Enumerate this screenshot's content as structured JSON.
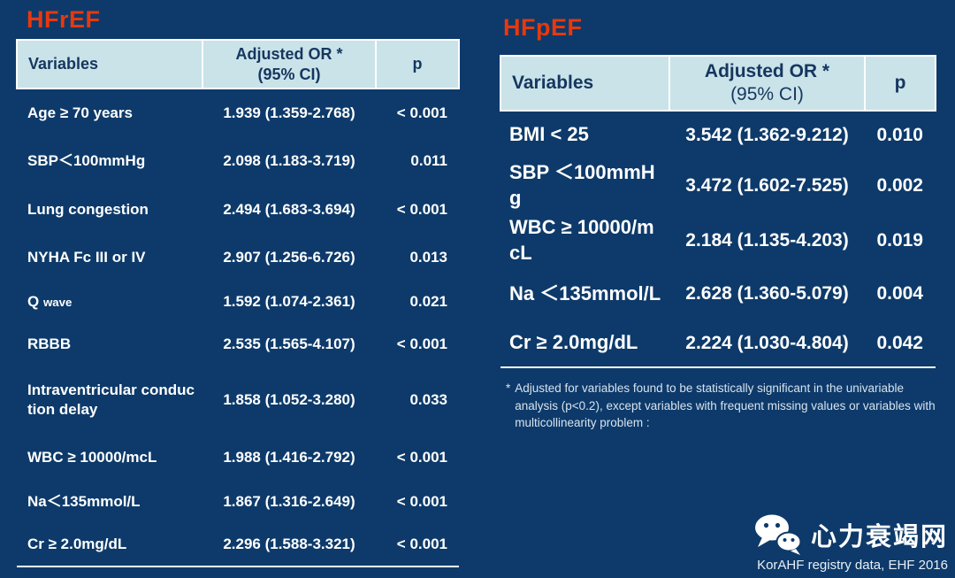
{
  "slide": {
    "background_color": "#0d3a6a",
    "accent_red": "#e8380d",
    "table_header_bg": "#c9e3e9",
    "table_header_text": "#16365f",
    "body_text_color": "#ffffff"
  },
  "left_table": {
    "title": "HFrEF",
    "columns": {
      "variable": "Variables",
      "or_line1": "Adjusted OR *",
      "or_line2": "(95% CI)",
      "p": "p"
    },
    "rows": [
      {
        "variable": "Age ≥ 70 years",
        "or": "1.939 (1.359-2.768)",
        "p": "< 0.001"
      },
      {
        "variable": "SBP＜100mmHg",
        "or": "2.098 (1.183-3.719)",
        "p": "0.011"
      },
      {
        "variable": "Lung congestion",
        "or": "2.494 (1.683-3.694)",
        "p": "< 0.001"
      },
      {
        "variable": "NYHA Fc III or IV",
        "or": "2.907 (1.256-6.726)",
        "p": "0.013"
      },
      {
        "variable": "Q",
        "variable_small": "wave",
        "or": "1.592 (1.074-2.361)",
        "p": "0.021"
      },
      {
        "variable": "RBBB",
        "or": "2.535 (1.565-4.107)",
        "p": "< 0.001"
      },
      {
        "variable": "Intraventricular conduction delay",
        "or": "1.858 (1.052-3.280)",
        "p": "0.033"
      },
      {
        "variable": "WBC ≥ 10000/mcL",
        "or": "1.988 (1.416-2.792)",
        "p": "< 0.001"
      },
      {
        "variable": "Na＜135mmol/L",
        "or": "1.867 (1.316-2.649)",
        "p": "< 0.001"
      },
      {
        "variable": "Cr ≥ 2.0mg/dL",
        "or": "2.296 (1.588-3.321)",
        "p": "< 0.001"
      }
    ]
  },
  "right_table": {
    "title": "HFpEF",
    "columns": {
      "variable": "Variables",
      "or_line1": "Adjusted OR *",
      "or_line2": "(95% CI)",
      "p": "p"
    },
    "rows": [
      {
        "variable": "BMI < 25",
        "or": "3.542 (1.362-9.212)",
        "p": "0.010"
      },
      {
        "variable": "SBP ＜100mmHg",
        "or": "3.472 (1.602-7.525)",
        "p": "0.002"
      },
      {
        "variable": "WBC ≥ 10000/mcL",
        "or": "2.184 (1.135-4.203)",
        "p": "0.019"
      },
      {
        "variable": "Na ＜135mmol/L",
        "or": "2.628 (1.360-5.079)",
        "p": "0.004"
      },
      {
        "variable": "Cr ≥ 2.0mg/dL",
        "or": "2.224 (1.030-4.804)",
        "p": "0.042"
      }
    ]
  },
  "footnote": {
    "marker": "*",
    "text": "Adjusted for variables found to be statistically significant in the univariable analysis (p<0.2), except variables with frequent missing values or variables with multicollinearity problem :"
  },
  "footer": {
    "logo_text": "心力衰竭网",
    "attribution": "KorAHF registry data, EHF 2016"
  }
}
